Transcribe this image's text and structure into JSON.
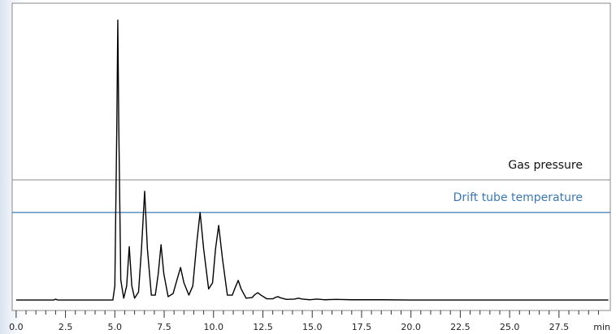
{
  "chart_data": {
    "type": "line",
    "x_label": "min",
    "xlim": [
      -0.2,
      30.1
    ],
    "ylim": [
      0,
      100
    ],
    "xticks": [
      {
        "value": 0,
        "label": "0.0"
      },
      2.5,
      {
        "value": 5,
        "label": "5.0"
      },
      7.5,
      {
        "value": 10,
        "label": "10.0"
      },
      12.5,
      {
        "value": 15,
        "label": "15.0"
      },
      17.5,
      {
        "value": 20,
        "label": "20.0"
      },
      22.5,
      {
        "value": 25,
        "label": "25.0"
      },
      27.5
    ],
    "x": [
      0,
      1.9,
      2.0,
      2.1,
      4.9,
      5.0,
      5.1,
      5.15,
      5.2,
      5.3,
      5.45,
      5.6,
      5.73,
      5.86,
      6.0,
      6.2,
      6.35,
      6.51,
      6.65,
      6.85,
      7.05,
      7.2,
      7.34,
      7.48,
      7.7,
      7.95,
      8.15,
      8.33,
      8.5,
      8.75,
      8.95,
      9.15,
      9.32,
      9.5,
      9.75,
      9.95,
      10.1,
      10.26,
      10.45,
      10.7,
      10.95,
      11.1,
      11.25,
      11.4,
      11.65,
      11.95,
      12.1,
      12.24,
      12.4,
      12.7,
      13.0,
      13.15,
      13.27,
      13.4,
      13.7,
      14.1,
      14.3,
      14.5,
      14.9,
      15.25,
      15.6,
      16.2,
      17.0,
      18.5,
      20.0,
      30.0
    ],
    "series": [
      {
        "color": "#000000",
        "values": [
          3.4,
          3.4,
          3.7,
          3.4,
          3.4,
          8,
          60,
          94.5,
          60,
          10,
          4,
          8,
          20.8,
          8,
          4,
          6,
          20,
          38.8,
          20,
          5,
          5,
          12,
          21.4,
          12,
          4.5,
          5.5,
          10,
          14,
          9,
          5,
          8,
          22,
          31.9,
          20,
          7,
          9,
          20,
          27.7,
          17,
          5,
          5,
          7.5,
          9.8,
          7,
          4,
          4.2,
          5.2,
          5.8,
          5,
          3.8,
          3.8,
          4.3,
          4.5,
          4.1,
          3.6,
          3.7,
          4.0,
          3.7,
          3.5,
          3.7,
          3.5,
          3.6,
          3.5,
          3.5,
          3.4,
          3.4
        ]
      }
    ],
    "reference_lines": [
      {
        "name": "Gas pressure",
        "color": "#999999",
        "label_color": "#111111",
        "value": 42.5
      },
      {
        "name": "Drift tube temperature",
        "color": "#3a78b5",
        "label_color": "#3a78b5",
        "value": 31.9
      }
    ]
  }
}
